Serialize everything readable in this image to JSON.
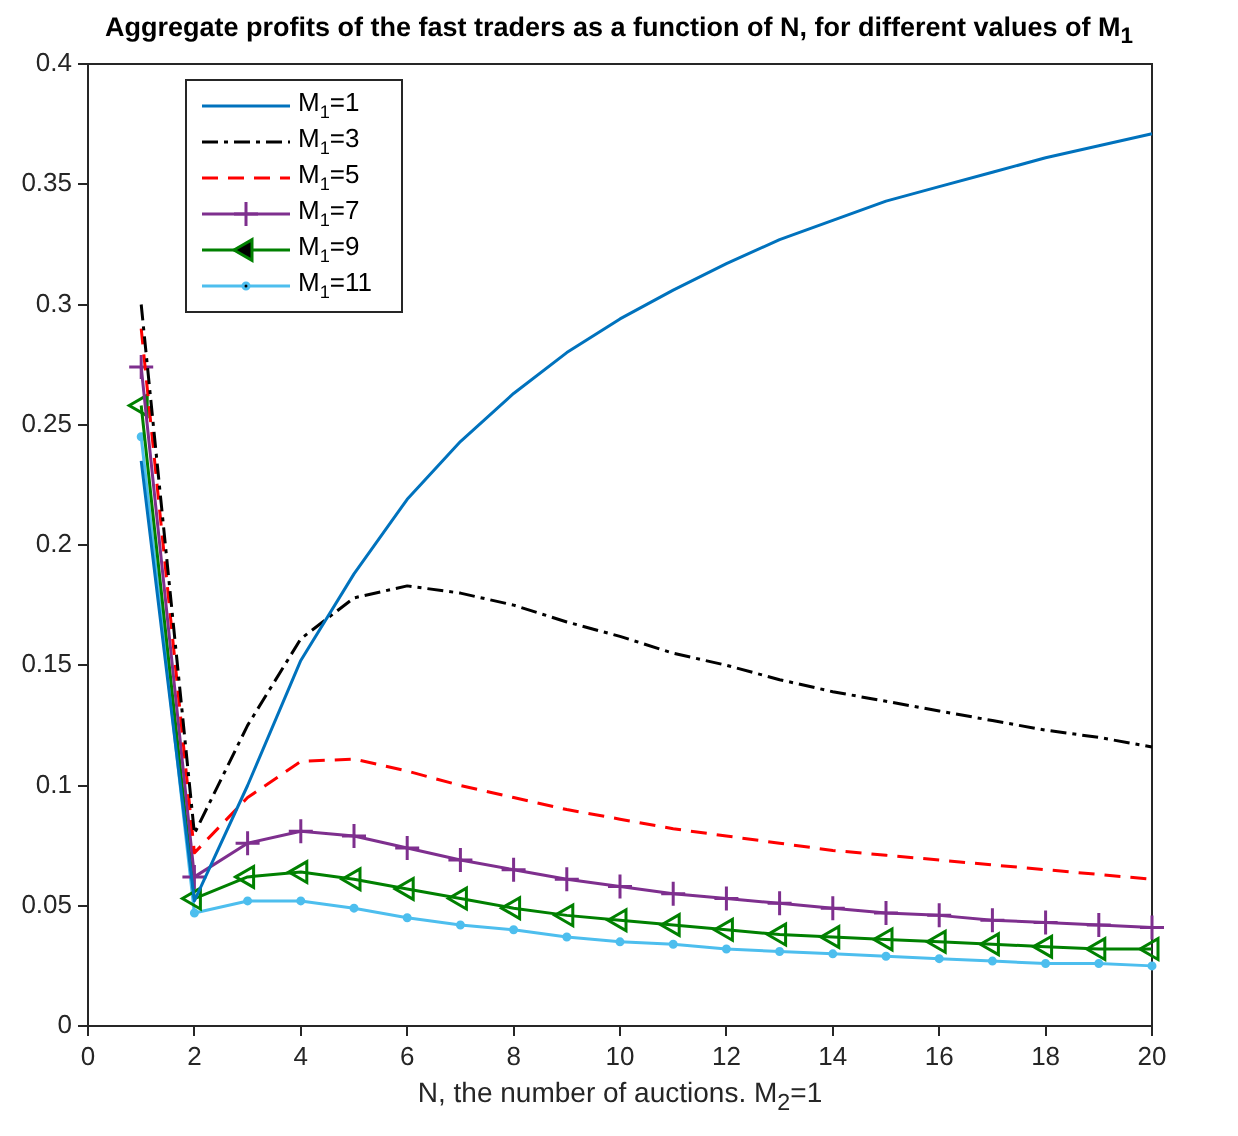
{
  "chart_data": {
    "type": "line",
    "title": "Aggregate profits of the fast traders as a function of N, for different values of M$_{1}$",
    "xlabel": "N, the number of auctions. M$_{2}$=1",
    "x": [
      1,
      2,
      3,
      4,
      5,
      6,
      7,
      8,
      9,
      10,
      11,
      12,
      13,
      14,
      15,
      16,
      17,
      18,
      19,
      20
    ],
    "xlim": [
      0,
      20
    ],
    "xticks": [
      0,
      2,
      4,
      6,
      8,
      10,
      12,
      14,
      16,
      18,
      20
    ],
    "ylim": [
      0,
      0.4
    ],
    "yticks": [
      0,
      0.05,
      0.1,
      0.15,
      0.2,
      0.25,
      0.3,
      0.35,
      0.4
    ],
    "grid": false,
    "legend": "top left",
    "series": [
      {
        "name": "M$_{1}$=1",
        "color": "#0072bd",
        "marker": "none",
        "line_style": "solid",
        "values": [
          0.235,
          0.052,
          0.1,
          0.152,
          0.188,
          0.219,
          0.243,
          0.263,
          0.28,
          0.294,
          0.306,
          0.317,
          0.327,
          0.335,
          0.343,
          0.349,
          0.355,
          0.361,
          0.366,
          0.371
        ]
      },
      {
        "name": "M$_{1}$=3",
        "color": "#000000",
        "marker": "none",
        "line_style": "dashdot",
        "values": [
          0.3,
          0.08,
          0.125,
          0.161,
          0.178,
          0.183,
          0.18,
          0.175,
          0.168,
          0.162,
          0.155,
          0.15,
          0.144,
          0.139,
          0.135,
          0.131,
          0.127,
          0.123,
          0.12,
          0.116
        ]
      },
      {
        "name": "M$_{1}$=5",
        "color": "#ff0000",
        "marker": "none",
        "line_style": "dashed",
        "values": [
          0.29,
          0.072,
          0.095,
          0.11,
          0.111,
          0.106,
          0.1,
          0.095,
          0.09,
          0.086,
          0.082,
          0.079,
          0.076,
          0.073,
          0.071,
          0.069,
          0.067,
          0.065,
          0.063,
          0.061
        ]
      },
      {
        "name": "M$_{1}$=7",
        "color": "#7e2f8e",
        "marker": "cross",
        "line_style": "solid",
        "values": [
          0.274,
          0.062,
          0.076,
          0.081,
          0.079,
          0.074,
          0.069,
          0.065,
          0.061,
          0.058,
          0.055,
          0.053,
          0.051,
          0.049,
          0.047,
          0.046,
          0.044,
          0.043,
          0.042,
          0.041
        ]
      },
      {
        "name": "M$_{1}$=9",
        "color": "#008000",
        "marker": "triangle",
        "line_style": "solid",
        "values": [
          0.258,
          0.053,
          0.062,
          0.064,
          0.061,
          0.057,
          0.053,
          0.049,
          0.046,
          0.044,
          0.042,
          0.04,
          0.038,
          0.037,
          0.036,
          0.035,
          0.034,
          0.033,
          0.032,
          0.032
        ]
      },
      {
        "name": "M$_{1}$=11",
        "color": "#4dbeee",
        "marker": "circle",
        "line_style": "solid",
        "values": [
          0.245,
          0.047,
          0.052,
          0.052,
          0.049,
          0.045,
          0.042,
          0.04,
          0.037,
          0.035,
          0.034,
          0.032,
          0.031,
          0.03,
          0.029,
          0.028,
          0.027,
          0.026,
          0.026,
          0.025
        ]
      }
    ]
  }
}
